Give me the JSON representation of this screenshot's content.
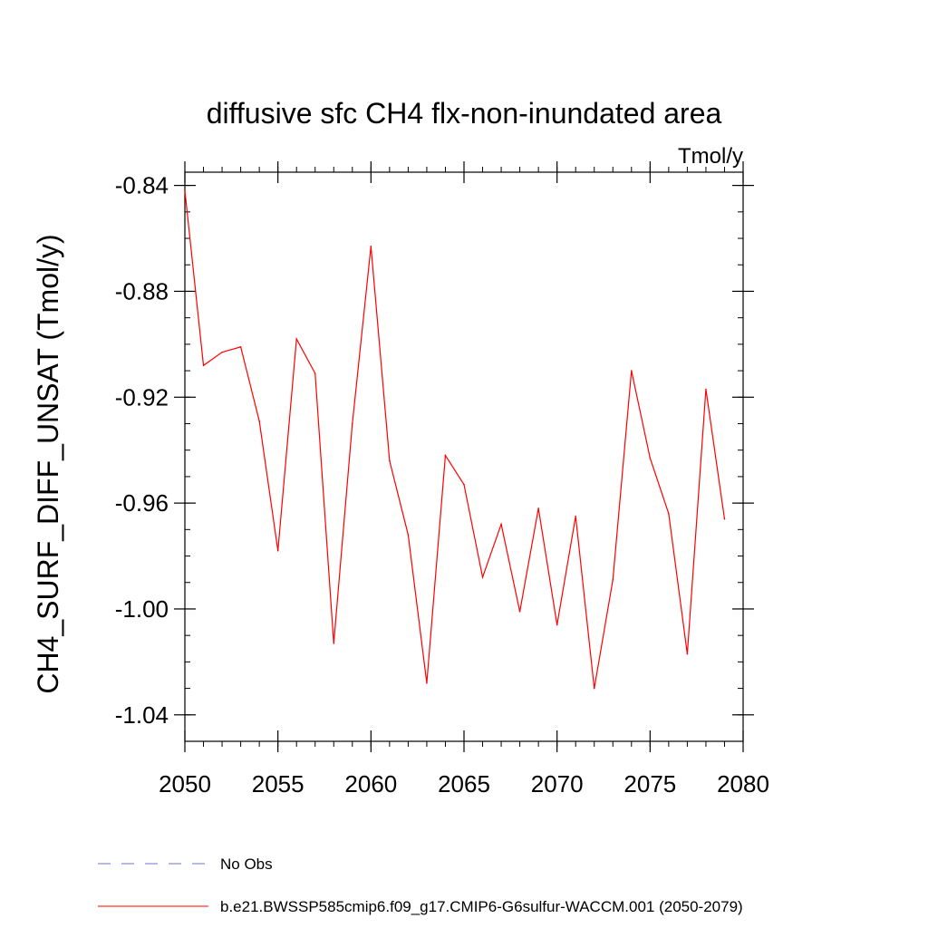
{
  "chart_data": {
    "type": "line",
    "title": "diffusive sfc CH4 flx-non-inundated area",
    "units_label": "Tmol/y",
    "ylabel": "CH4_SURF_DIFF_UNSAT  (Tmol/y)",
    "xlabel": "",
    "xlim": [
      2050,
      2080
    ],
    "ylim": [
      -1.05,
      -0.835
    ],
    "x_ticks": [
      2050,
      2055,
      2060,
      2065,
      2070,
      2075,
      2080
    ],
    "x_tick_labels": [
      "2050",
      "2055",
      "2060",
      "2065",
      "2070",
      "2075",
      "2080"
    ],
    "y_ticks": [
      -0.84,
      -0.88,
      -0.92,
      -0.96,
      -1.0,
      -1.04
    ],
    "y_tick_labels": [
      "-0.84",
      "-0.88",
      "-0.92",
      "-0.96",
      "-1.00",
      "-1.04"
    ],
    "x_minor_step": 1,
    "y_minor_step": 0.01,
    "grid": false,
    "series": [
      {
        "name": "b.e21.BWSSP585cmip6.f09_g17.CMIP6-G6sulfur-WACCM.001 (2050-2079)",
        "color": "#ff0000",
        "x": [
          2050,
          2051,
          2052,
          2053,
          2054,
          2055,
          2056,
          2057,
          2058,
          2059,
          2060,
          2061,
          2062,
          2063,
          2064,
          2065,
          2066,
          2067,
          2068,
          2069,
          2070,
          2071,
          2072,
          2073,
          2074,
          2075,
          2076,
          2077,
          2078,
          2079
        ],
        "y": [
          -0.842,
          -0.908,
          -0.903,
          -0.901,
          -0.929,
          -0.978,
          -0.898,
          -0.911,
          -1.013,
          -0.93,
          -0.863,
          -0.944,
          -0.972,
          -1.028,
          -0.942,
          -0.953,
          -0.988,
          -0.968,
          -1.001,
          -0.962,
          -1.006,
          -0.965,
          -1.03,
          -0.989,
          -0.91,
          -0.943,
          -0.964,
          -1.017,
          -0.917,
          -0.966
        ]
      }
    ],
    "legend": {
      "placement": "bottom-left",
      "items": [
        {
          "label": "No Obs",
          "color": "#7070c8",
          "style": "dashed"
        },
        {
          "label": "b.e21.BWSSP585cmip6.f09_g17.CMIP6-G6sulfur-WACCM.001 (2050-2079)",
          "color": "#ff0000",
          "style": "solid"
        }
      ]
    }
  }
}
